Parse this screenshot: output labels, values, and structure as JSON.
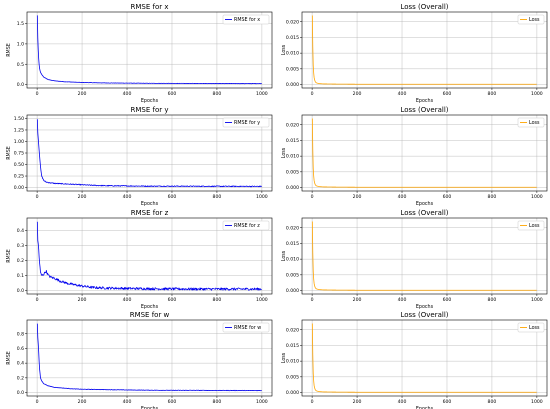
{
  "chart_data": [
    {
      "type": "line",
      "title": "RMSE for x",
      "xlabel": "Epochs",
      "ylabel": "RMSE",
      "xlim": [
        -45,
        1045
      ],
      "ylim": [
        -0.085,
        1.785
      ],
      "xticks": [
        0,
        200,
        400,
        600,
        800,
        1000
      ],
      "xtick_labels": [
        "0",
        "200",
        "400",
        "600",
        "800",
        "1000"
      ],
      "yticks": [
        0.0,
        0.5,
        1.0,
        1.5
      ],
      "ytick_labels": [
        "0.0",
        "0.5",
        "1.0",
        "1.5"
      ],
      "grid": true,
      "legend_position": "top-right",
      "series": [
        {
          "name": "RMSE for x",
          "color": "#0000ee",
          "noise": 0.004,
          "x": [
            1,
            3,
            6,
            10,
            15,
            20,
            30,
            50,
            80,
            120,
            160,
            200,
            300,
            400,
            500,
            600,
            700,
            800,
            900,
            1000
          ],
          "y": [
            1.7,
            1.15,
            0.7,
            0.42,
            0.3,
            0.25,
            0.18,
            0.12,
            0.09,
            0.07,
            0.06,
            0.05,
            0.04,
            0.035,
            0.03,
            0.028,
            0.026,
            0.025,
            0.024,
            0.023
          ]
        }
      ]
    },
    {
      "type": "line",
      "title": "Loss (Overall)",
      "xlabel": "Epochs",
      "ylabel": "Loss",
      "xlim": [
        -45,
        1045
      ],
      "ylim": [
        -0.0011,
        0.0231
      ],
      "xticks": [
        0,
        200,
        400,
        600,
        800,
        1000
      ],
      "xtick_labels": [
        "0",
        "200",
        "400",
        "600",
        "800",
        "1000"
      ],
      "yticks": [
        0.0,
        0.005,
        0.01,
        0.015,
        0.02
      ],
      "ytick_labels": [
        "0.000",
        "0.005",
        "0.010",
        "0.015",
        "0.020"
      ],
      "grid": true,
      "legend_position": "top-right",
      "series": [
        {
          "name": "Loss",
          "color": "#ffa500",
          "noise": 0,
          "x": [
            1,
            3,
            5,
            8,
            12,
            16,
            20,
            30,
            50,
            100,
            200,
            400,
            600,
            800,
            1000
          ],
          "y": [
            0.022,
            0.012,
            0.006,
            0.0025,
            0.0012,
            0.0007,
            0.0005,
            0.0003,
            0.0002,
            0.00015,
            0.0001,
            0.0001,
            0.0001,
            0.0001,
            0.0001
          ]
        }
      ]
    },
    {
      "type": "line",
      "title": "RMSE for y",
      "xlabel": "Epochs",
      "ylabel": "RMSE",
      "xlim": [
        -45,
        1045
      ],
      "ylim": [
        -0.075,
        1.575
      ],
      "xticks": [
        0,
        200,
        400,
        600,
        800,
        1000
      ],
      "xtick_labels": [
        "0",
        "200",
        "400",
        "600",
        "800",
        "1000"
      ],
      "yticks": [
        0.0,
        0.25,
        0.5,
        0.75,
        1.0,
        1.25,
        1.5
      ],
      "ytick_labels": [
        "0.00",
        "0.25",
        "0.50",
        "0.75",
        "1.00",
        "1.25",
        "1.50"
      ],
      "grid": true,
      "legend_position": "top-right",
      "series": [
        {
          "name": "RMSE for y",
          "color": "#0000ee",
          "noise": 0.01,
          "x": [
            1,
            3,
            6,
            10,
            15,
            20,
            30,
            40,
            60,
            80,
            120,
            160,
            200,
            240,
            300,
            400,
            500,
            600,
            700,
            800,
            900,
            1000
          ],
          "y": [
            1.48,
            1.2,
            1.0,
            0.75,
            0.45,
            0.25,
            0.15,
            0.12,
            0.1,
            0.09,
            0.08,
            0.07,
            0.06,
            0.05,
            0.04,
            0.035,
            0.03,
            0.03,
            0.028,
            0.027,
            0.026,
            0.025
          ]
        }
      ]
    },
    {
      "type": "line",
      "title": "Loss (Overall)",
      "xlabel": "Epochs",
      "ylabel": "Loss",
      "xlim": [
        -45,
        1045
      ],
      "ylim": [
        -0.0011,
        0.0231
      ],
      "xticks": [
        0,
        200,
        400,
        600,
        800,
        1000
      ],
      "xtick_labels": [
        "0",
        "200",
        "400",
        "600",
        "800",
        "1000"
      ],
      "yticks": [
        0.0,
        0.005,
        0.01,
        0.015,
        0.02
      ],
      "ytick_labels": [
        "0.000",
        "0.005",
        "0.010",
        "0.015",
        "0.020"
      ],
      "grid": true,
      "legend_position": "top-right",
      "series": [
        {
          "name": "Loss",
          "color": "#ffa500",
          "noise": 0,
          "x": [
            1,
            3,
            5,
            8,
            12,
            16,
            20,
            30,
            50,
            100,
            200,
            400,
            600,
            800,
            1000
          ],
          "y": [
            0.022,
            0.012,
            0.006,
            0.0025,
            0.0012,
            0.0007,
            0.0005,
            0.0003,
            0.0002,
            0.00015,
            0.0001,
            0.0001,
            0.0001,
            0.0001,
            0.0001
          ]
        }
      ]
    },
    {
      "type": "line",
      "title": "RMSE for z",
      "xlabel": "Epochs",
      "ylabel": "RMSE",
      "xlim": [
        -45,
        1045
      ],
      "ylim": [
        -0.023,
        0.483
      ],
      "xticks": [
        0,
        200,
        400,
        600,
        800,
        1000
      ],
      "xtick_labels": [
        "0",
        "200",
        "400",
        "600",
        "800",
        "1000"
      ],
      "yticks": [
        0.0,
        0.1,
        0.2,
        0.3,
        0.4
      ],
      "ytick_labels": [
        "0.0",
        "0.1",
        "0.2",
        "0.3",
        "0.4"
      ],
      "grid": true,
      "legend_position": "top-right",
      "series": [
        {
          "name": "RMSE for z",
          "color": "#0000ee",
          "noise": 0.008,
          "x": [
            1,
            3,
            6,
            10,
            15,
            20,
            30,
            40,
            50,
            60,
            80,
            100,
            130,
            160,
            200,
            250,
            300,
            400,
            500,
            600,
            700,
            800,
            900,
            1000
          ],
          "y": [
            0.46,
            0.33,
            0.3,
            0.2,
            0.12,
            0.1,
            0.11,
            0.13,
            0.1,
            0.09,
            0.08,
            0.065,
            0.05,
            0.04,
            0.03,
            0.02,
            0.017,
            0.014,
            0.012,
            0.011,
            0.01,
            0.01,
            0.01,
            0.01
          ]
        }
      ]
    },
    {
      "type": "line",
      "title": "Loss (Overall)",
      "xlabel": "Epochs",
      "ylabel": "Loss",
      "xlim": [
        -45,
        1045
      ],
      "ylim": [
        -0.0011,
        0.0231
      ],
      "xticks": [
        0,
        200,
        400,
        600,
        800,
        1000
      ],
      "xtick_labels": [
        "0",
        "200",
        "400",
        "600",
        "800",
        "1000"
      ],
      "yticks": [
        0.0,
        0.005,
        0.01,
        0.015,
        0.02
      ],
      "ytick_labels": [
        "0.000",
        "0.005",
        "0.010",
        "0.015",
        "0.020"
      ],
      "grid": true,
      "legend_position": "top-right",
      "series": [
        {
          "name": "Loss",
          "color": "#ffa500",
          "noise": 0,
          "x": [
            1,
            3,
            5,
            8,
            12,
            16,
            20,
            30,
            50,
            100,
            200,
            400,
            600,
            800,
            1000
          ],
          "y": [
            0.022,
            0.012,
            0.006,
            0.0025,
            0.0012,
            0.0007,
            0.0005,
            0.0003,
            0.0002,
            0.00015,
            0.0001,
            0.0001,
            0.0001,
            0.0001,
            0.0001
          ]
        }
      ]
    },
    {
      "type": "line",
      "title": "RMSE for w",
      "xlabel": "Epochs",
      "ylabel": "RMSE",
      "xlim": [
        -45,
        1045
      ],
      "ylim": [
        -0.047,
        0.987
      ],
      "xticks": [
        0,
        200,
        400,
        600,
        800,
        1000
      ],
      "xtick_labels": [
        "0",
        "200",
        "400",
        "600",
        "800",
        "1000"
      ],
      "yticks": [
        0.0,
        0.2,
        0.4,
        0.6,
        0.8
      ],
      "ytick_labels": [
        "0.0",
        "0.2",
        "0.4",
        "0.6",
        "0.8"
      ],
      "grid": true,
      "legend_position": "top-right",
      "series": [
        {
          "name": "RMSE for w",
          "color": "#0000ee",
          "noise": 0.003,
          "x": [
            1,
            3,
            6,
            10,
            15,
            20,
            30,
            50,
            80,
            120,
            160,
            200,
            300,
            400,
            500,
            600,
            700,
            800,
            900,
            1000
          ],
          "y": [
            0.94,
            0.75,
            0.62,
            0.35,
            0.2,
            0.16,
            0.12,
            0.09,
            0.07,
            0.06,
            0.05,
            0.045,
            0.04,
            0.035,
            0.032,
            0.03,
            0.03,
            0.028,
            0.028,
            0.027
          ]
        }
      ]
    },
    {
      "type": "line",
      "title": "Loss (Overall)",
      "xlabel": "Epochs",
      "ylabel": "Loss",
      "xlim": [
        -45,
        1045
      ],
      "ylim": [
        -0.0011,
        0.0231
      ],
      "xticks": [
        0,
        200,
        400,
        600,
        800,
        1000
      ],
      "xtick_labels": [
        "0",
        "200",
        "400",
        "600",
        "800",
        "1000"
      ],
      "yticks": [
        0.0,
        0.005,
        0.01,
        0.015,
        0.02
      ],
      "ytick_labels": [
        "0.000",
        "0.005",
        "0.010",
        "0.015",
        "0.020"
      ],
      "grid": true,
      "legend_position": "top-right",
      "series": [
        {
          "name": "Loss",
          "color": "#ffa500",
          "noise": 0,
          "x": [
            1,
            3,
            5,
            8,
            12,
            16,
            20,
            30,
            50,
            100,
            200,
            400,
            600,
            800,
            1000
          ],
          "y": [
            0.022,
            0.012,
            0.006,
            0.0025,
            0.0012,
            0.0007,
            0.0005,
            0.0003,
            0.0002,
            0.00015,
            0.0001,
            0.0001,
            0.0001,
            0.0001,
            0.0001
          ]
        }
      ]
    }
  ]
}
